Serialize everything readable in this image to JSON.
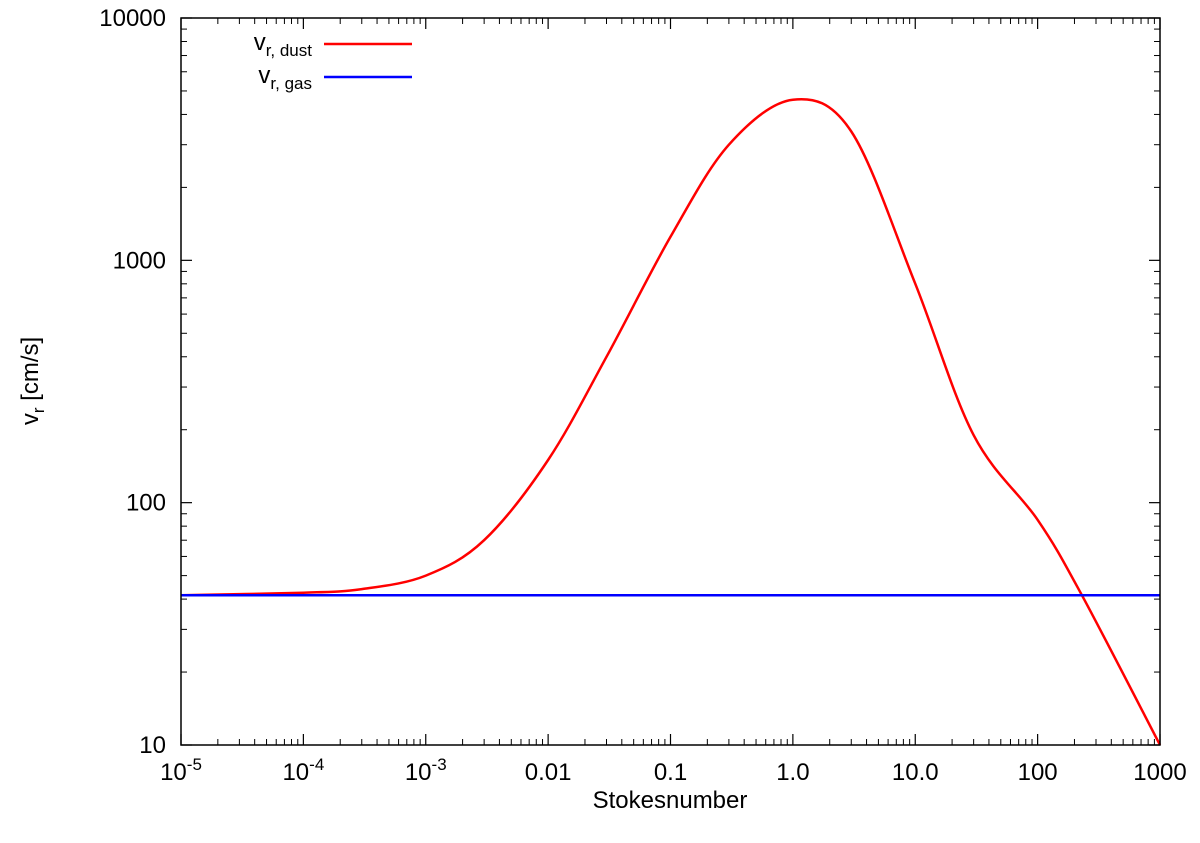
{
  "chart_data": {
    "type": "line",
    "title": "",
    "xlabel": "Stokesnumber",
    "ylabel": {
      "main": "v",
      "sub": "r",
      "rest": " [cm/s]"
    },
    "xscale": "log",
    "yscale": "log",
    "xlim": [
      1e-05,
      1000
    ],
    "ylim": [
      10,
      10000
    ],
    "grid": false,
    "legend_position": "top-left",
    "x_ticks": [
      {
        "value": 1e-05,
        "base": "10",
        "exp": "-5"
      },
      {
        "value": 0.0001,
        "base": "10",
        "exp": "-4"
      },
      {
        "value": 0.001,
        "base": "10",
        "exp": "-3"
      },
      {
        "value": 0.01,
        "label": "0.01"
      },
      {
        "value": 0.1,
        "label": "0.1"
      },
      {
        "value": 1,
        "label": "1.0"
      },
      {
        "value": 10,
        "label": "10.0"
      },
      {
        "value": 100,
        "label": "100"
      },
      {
        "value": 1000,
        "label": "1000"
      }
    ],
    "y_ticks": [
      {
        "value": 10,
        "label": "10"
      },
      {
        "value": 100,
        "label": "100"
      },
      {
        "value": 1000,
        "label": "1000"
      },
      {
        "value": 10000,
        "label": "10000"
      }
    ],
    "series": [
      {
        "name": {
          "main": "v",
          "sub": "r, dust"
        },
        "color": "#ff0000",
        "x": [
          1e-05,
          0.0001,
          0.0003,
          0.001,
          0.003,
          0.01,
          0.03,
          0.1,
          0.3,
          1,
          3,
          10,
          30,
          100,
          230,
          1000
        ],
        "y": [
          41.5,
          42.5,
          44,
          50,
          70,
          150,
          400,
          1250,
          3000,
          4600,
          3400,
          800,
          190,
          85,
          41.5,
          10
        ]
      },
      {
        "name": {
          "main": "v",
          "sub": "r, gas"
        },
        "color": "#0000ff",
        "x": [
          1e-05,
          1000
        ],
        "y": [
          41.5,
          41.5
        ]
      }
    ]
  }
}
